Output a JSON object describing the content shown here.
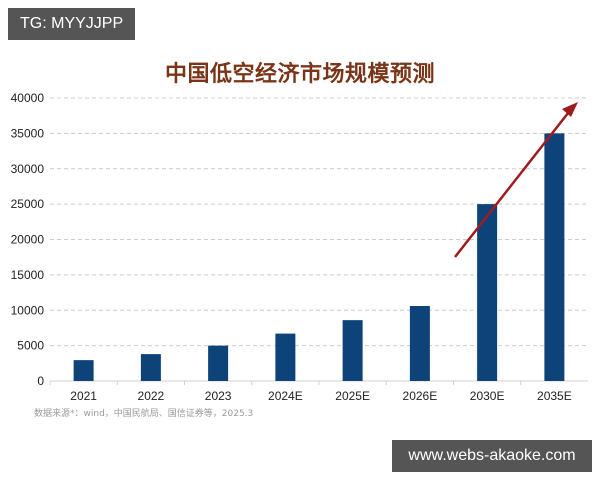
{
  "watermarks": {
    "top_left": "TG: MYYJJPP",
    "bottom_right": "www.webs-akaoke.com"
  },
  "source_note": "数据来源*：wind，中国民航局、国信证券等，2025.3",
  "colors": {
    "bar": "#0d4379",
    "arrow": "#a01c1c",
    "title": "#7a3518",
    "grid": "#cccccc"
  },
  "chart_data": {
    "type": "bar",
    "title": "中国低空经济市场规模预测",
    "xlabel": "",
    "ylabel": "",
    "categories": [
      "2021",
      "2022",
      "2023",
      "2024E",
      "2025E",
      "2026E",
      "2030E",
      "2035E"
    ],
    "values": [
      2950,
      3800,
      5000,
      6700,
      8600,
      10600,
      25000,
      35000
    ],
    "ylim": [
      0,
      40000
    ],
    "yticks": [
      0,
      5000,
      10000,
      15000,
      20000,
      25000,
      30000,
      35000,
      40000
    ],
    "grid": true,
    "legend": null,
    "annotations": [
      "red upward trend arrow across 2030E and 2035E bars"
    ]
  }
}
